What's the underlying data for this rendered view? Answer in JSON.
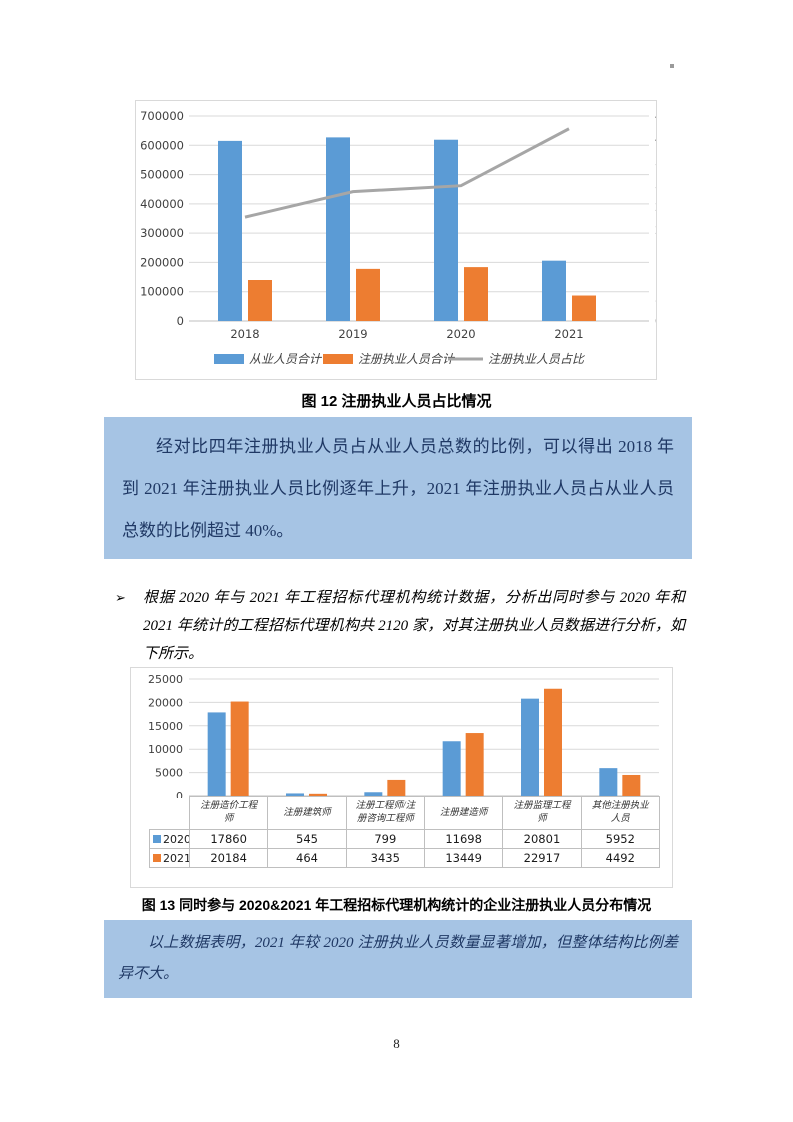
{
  "page": {
    "number": "8"
  },
  "colors": {
    "bar_blue": "#5B9BD5",
    "bar_orange": "#ED7D31",
    "line_gray": "#A6A6A6",
    "highlight_bg": "#A6C4E4",
    "grid": "#D9D9D9",
    "axis_line": "#BFBFBF",
    "tick_text": "#404040"
  },
  "figure12": {
    "caption": "图 12  注册执业人员占比情况",
    "chart_data": {
      "type": "combo-bar-line",
      "categories": [
        "2018",
        "2019",
        "2020",
        "2021"
      ],
      "bar_series": [
        {
          "name": "从业人员合计",
          "color": "#5B9BD5",
          "values": [
            615000,
            627000,
            619000,
            206000
          ]
        },
        {
          "name": "注册执业人员合计",
          "color": "#ED7D31",
          "values": [
            140000,
            178000,
            184000,
            87000
          ]
        }
      ],
      "line_series": {
        "name": "注册执业人员占比",
        "color": "#A6A6A6",
        "values_pct": [
          22.8,
          28.4,
          29.7,
          42.2
        ]
      },
      "left_axis": {
        "min": 0,
        "max": 700000,
        "step": 100000
      },
      "right_axis": {
        "min": 0,
        "max": 45,
        "step": 5,
        "suffix": "%"
      },
      "grid": true,
      "legend_position": "bottom"
    }
  },
  "highlight1": {
    "text": "经对比四年注册执业人员占从业人员总数的比例，可以得出 2018 年到 2021 年注册执业人员比例逐年上升，2021 年注册执业人员占从业人员总数的比例超过 40%。"
  },
  "bullet": {
    "marker": "➢",
    "text": "根据 2020 年与 2021 年工程招标代理机构统计数据，分析出同时参与 2020 年和 2021 年统计的工程招标代理机构共 2120 家，对其注册执业人员数据进行分析，如下所示。"
  },
  "figure13": {
    "caption": "图 13  同时参与 2020&2021 年工程招标代理机构统计的企业注册执业人员分布情况",
    "chart_data": {
      "type": "bar",
      "categories": [
        "注册造价工程师",
        "注册建筑师",
        "注册工程师/注册咨询工程师",
        "注册建造师",
        "注册监理工程师",
        "其他注册执业人员"
      ],
      "series": [
        {
          "name": "2020",
          "color": "#5B9BD5",
          "values": [
            17860,
            545,
            799,
            11698,
            20801,
            5952
          ]
        },
        {
          "name": "2021",
          "color": "#ED7D31",
          "values": [
            20184,
            464,
            3435,
            13449,
            22917,
            4492
          ]
        }
      ],
      "ylim": [
        0,
        25000
      ],
      "ystep": 5000,
      "grid": true,
      "data_table": true
    }
  },
  "highlight2": {
    "text": "以上数据表明，2021 年较 2020 注册执业人员数量显著增加，但整体结构比例差异不大。"
  }
}
